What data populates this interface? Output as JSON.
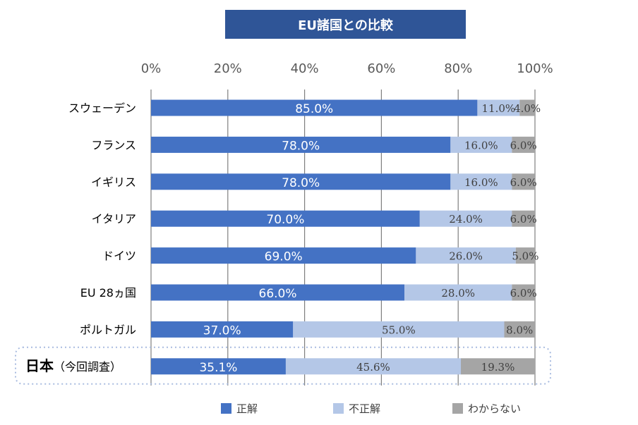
{
  "title": "EU諸国との比較",
  "chart_data": {
    "type": "bar",
    "orientation": "horizontal",
    "stacked": true,
    "title": "EU諸国との比較",
    "categories": [
      "スウェーデン",
      "フランス",
      "イギリス",
      "イタリア",
      "ドイツ",
      "EU 28ヵ国",
      "ポルトガル",
      "日本（今回調査）"
    ],
    "category_emphasis": {
      "日本（今回調査）": {
        "main": "日本",
        "sub": "（今回調査）"
      }
    },
    "xlim": [
      0,
      100
    ],
    "ticks": [
      "0%",
      "20%",
      "40%",
      "60%",
      "80%",
      "100%"
    ],
    "tick_values": [
      0,
      20,
      40,
      60,
      80,
      100
    ],
    "grid": true,
    "legend_position": "bottom",
    "series": [
      {
        "name": "正解",
        "color": "#4472C4",
        "values": [
          85.0,
          78.0,
          78.0,
          70.0,
          69.0,
          66.0,
          37.0,
          35.1
        ],
        "labels": [
          "85.0%",
          "78.0%",
          "78.0%",
          "70.0%",
          "69.0%",
          "66.0%",
          "37.0%",
          "35.1%"
        ]
      },
      {
        "name": "不正解",
        "color": "#B4C7E7",
        "values": [
          11.0,
          16.0,
          16.0,
          24.0,
          26.0,
          28.0,
          55.0,
          45.6
        ],
        "labels": [
          "11.0%",
          "16.0%",
          "16.0%",
          "24.0%",
          "26.0%",
          "28.0%",
          "55.0%",
          "45.6%"
        ]
      },
      {
        "name": "わからない",
        "color": "#A5A5A5",
        "values": [
          4.0,
          6.0,
          6.0,
          6.0,
          5.0,
          6.0,
          8.0,
          19.3
        ],
        "labels": [
          "4.0%",
          "6.0%",
          "6.0%",
          "6.0%",
          "5.0%",
          "6.0%",
          "8.0%",
          "19.3%"
        ]
      }
    ],
    "highlight_category": "日本（今回調査）"
  }
}
